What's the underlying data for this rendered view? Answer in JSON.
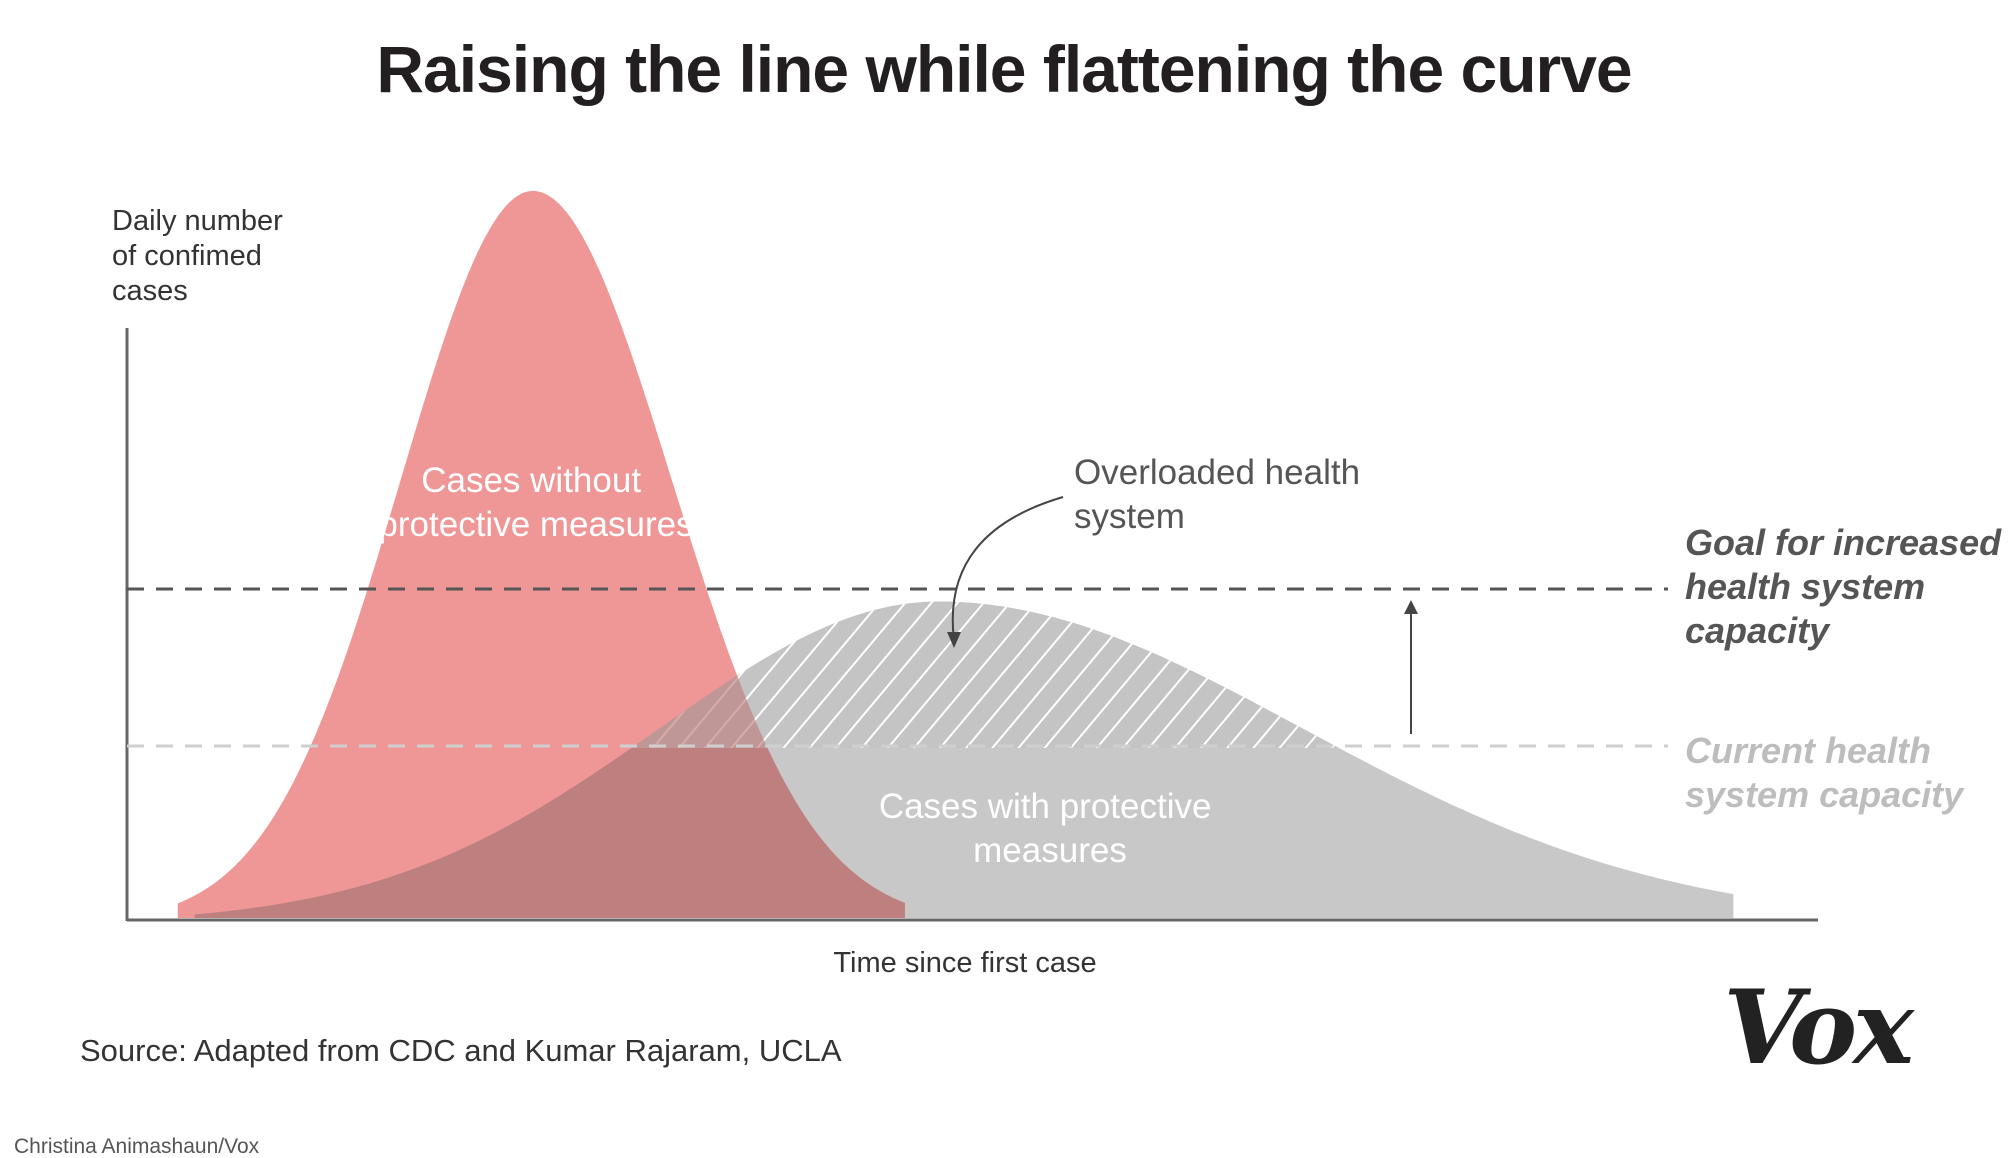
{
  "title": "Raising the line while flattening the curve",
  "source": "Source: Adapted from CDC and Kumar Rajaram, UCLA",
  "credit": "Christina Animashaun/Vox",
  "logo": "Vox",
  "colors": {
    "without_measures": "#ee8f8f",
    "with_measures": "#c8c8c8",
    "overlap": "#be7f7f",
    "axis": "#666666",
    "goal_line": "#555555",
    "current_line": "#cfcfcf"
  },
  "chart_data": {
    "type": "area",
    "xlabel": "Time since first case",
    "ylabel": "Daily number of confimed cases",
    "ylabel_lines": [
      "Daily number",
      "of confimed",
      "cases"
    ],
    "series": [
      {
        "name": "Cases without protective measures",
        "label_lines": [
          "Cases without",
          "protective measures"
        ],
        "shape": "sharp peak",
        "peak_x": 0.24,
        "peak_y": 1.0
      },
      {
        "name": "Cases with protective measures",
        "label_lines": [
          "Cases with protective",
          "measures"
        ],
        "shape": "flattened curve",
        "peak_x": 0.48,
        "peak_y": 0.44
      }
    ],
    "annotations": [
      {
        "text": "Overloaded health system",
        "lines": [
          "Overloaded health",
          "system"
        ]
      },
      {
        "text": "Goal for increased health system capacity",
        "lines": [
          "Goal for increased",
          "health system",
          "capacity"
        ],
        "y": 0.45
      },
      {
        "text": "Current health system capacity",
        "lines": [
          "Current health",
          "system capacity"
        ],
        "y": 0.24
      }
    ],
    "xlim": [
      0,
      1
    ],
    "ylim": [
      0,
      1
    ],
    "grid": false
  }
}
